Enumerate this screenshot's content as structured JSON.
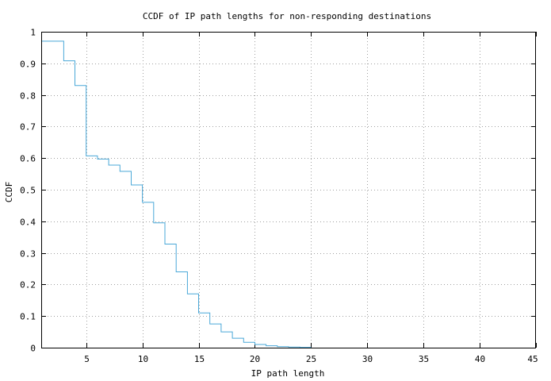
{
  "chart_data": {
    "type": "line",
    "title": "CCDF of IP path lengths for non-responding destinations",
    "xlabel": "IP path length",
    "ylabel": "CCDF",
    "xlim": [
      1,
      45
    ],
    "ylim": [
      0,
      1
    ],
    "x_ticks": [
      5,
      10,
      15,
      20,
      25,
      30,
      35,
      40,
      45
    ],
    "y_ticks": [
      0,
      0.1,
      0.2,
      0.3,
      0.4,
      0.5,
      0.6,
      0.7,
      0.8,
      0.9,
      1
    ],
    "y_tick_labels": [
      "0",
      "0.1",
      "0.2",
      "0.3",
      "0.4",
      "0.5",
      "0.6",
      "0.7",
      "0.8",
      "0.9",
      "1"
    ],
    "x_tick_labels": [
      "5",
      "10",
      "15",
      "20",
      "25",
      "30",
      "35",
      "40",
      "45"
    ],
    "grid": true,
    "step": true,
    "series": [
      {
        "color": "#4aa8d8",
        "x": [
          1,
          3,
          4,
          5,
          6,
          7,
          8,
          9,
          10,
          11,
          12,
          13,
          14,
          15,
          16,
          17,
          18,
          19,
          20,
          21,
          22,
          23,
          24,
          25
        ],
        "y": [
          0.97,
          0.908,
          0.83,
          0.607,
          0.597,
          0.578,
          0.558,
          0.515,
          0.46,
          0.395,
          0.328,
          0.24,
          0.17,
          0.11,
          0.075,
          0.05,
          0.03,
          0.017,
          0.01,
          0.006,
          0.003,
          0.002,
          0.001,
          0.001
        ]
      }
    ]
  }
}
